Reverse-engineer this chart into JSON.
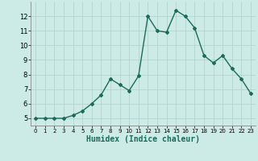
{
  "x": [
    0,
    1,
    2,
    3,
    4,
    5,
    6,
    7,
    8,
    9,
    10,
    11,
    12,
    13,
    14,
    15,
    16,
    17,
    18,
    19,
    20,
    21,
    22,
    23
  ],
  "y": [
    5.0,
    5.0,
    5.0,
    5.0,
    5.2,
    5.5,
    6.0,
    6.6,
    7.7,
    7.3,
    6.9,
    7.9,
    12.0,
    11.0,
    10.9,
    12.4,
    12.0,
    11.2,
    9.3,
    8.8,
    9.3,
    8.4,
    7.7,
    6.7
  ],
  "line_color": "#1a6b5a",
  "marker": "D",
  "markersize": 2.0,
  "linewidth": 1.0,
  "xlabel": "Humidex (Indice chaleur)",
  "xlim": [
    -0.5,
    23.5
  ],
  "ylim": [
    4.5,
    13.0
  ],
  "yticks": [
    5,
    6,
    7,
    8,
    9,
    10,
    11,
    12
  ],
  "xticks": [
    0,
    1,
    2,
    3,
    4,
    5,
    6,
    7,
    8,
    9,
    10,
    11,
    12,
    13,
    14,
    15,
    16,
    17,
    18,
    19,
    20,
    21,
    22,
    23
  ],
  "bg_color": "#cceae6",
  "grid_color": "#aed0cb",
  "xlabel_fontsize": 7,
  "xtick_fontsize": 5,
  "ytick_fontsize": 6
}
